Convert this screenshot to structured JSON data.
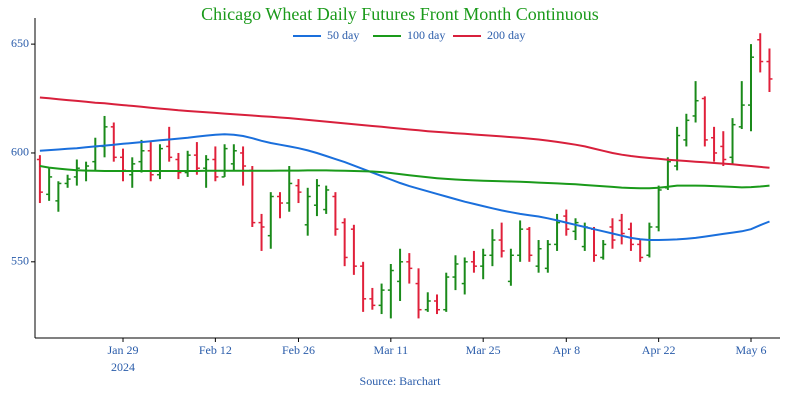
{
  "chart_data": {
    "type": "ohlc",
    "title": "Chicago Wheat Daily Futures Front Month Continuous",
    "source": "Source: Barchart",
    "categories": [
      null,
      null,
      null,
      null,
      null,
      null,
      null,
      null,
      null,
      "Jan 29",
      null,
      null,
      null,
      null,
      null,
      null,
      null,
      null,
      null,
      "Feb 12",
      null,
      null,
      null,
      null,
      null,
      null,
      null,
      null,
      "Feb 26",
      null,
      null,
      null,
      null,
      null,
      null,
      null,
      null,
      null,
      "Mar 11",
      null,
      null,
      null,
      null,
      null,
      null,
      null,
      null,
      null,
      "Mar 25",
      null,
      null,
      null,
      null,
      null,
      null,
      null,
      null,
      "Apr 8",
      null,
      null,
      null,
      null,
      null,
      null,
      null,
      null,
      null,
      "Apr 22",
      null,
      null,
      null,
      null,
      null,
      null,
      null,
      null,
      null,
      "May 6",
      null,
      null
    ],
    "year_label": "2024",
    "open": [
      597,
      581,
      578,
      586,
      589,
      592,
      596,
      603,
      612,
      598,
      590,
      596,
      601,
      590,
      603,
      597,
      591,
      599,
      593,
      597,
      589,
      595,
      600,
      592,
      568,
      562,
      580,
      577,
      585,
      567,
      576,
      574,
      580,
      568,
      565,
      548,
      533,
      530,
      537,
      541,
      550,
      540,
      528,
      532,
      528,
      543,
      540,
      550,
      548,
      553,
      560,
      541,
      553,
      565,
      548,
      547,
      558,
      571,
      564,
      557,
      565,
      552,
      566,
      569,
      565,
      558,
      553,
      566,
      584,
      594,
      606,
      617,
      625,
      607,
      603,
      598,
      612,
      622,
      652,
      642
    ],
    "high": [
      599,
      593,
      587,
      590,
      597,
      596,
      607,
      617,
      614,
      602,
      598,
      606,
      605,
      604,
      612,
      600,
      601,
      605,
      599,
      603,
      604,
      604,
      603,
      594,
      572,
      582,
      582,
      594,
      588,
      584,
      588,
      585,
      582,
      570,
      567,
      550,
      538,
      540,
      549,
      556,
      554,
      547,
      536,
      535,
      545,
      553,
      552,
      555,
      556,
      565,
      568,
      556,
      569,
      566,
      560,
      560,
      572,
      574,
      570,
      568,
      566,
      560,
      570,
      572,
      568,
      560,
      568,
      585,
      598,
      612,
      618,
      633,
      626,
      612,
      610,
      616,
      633,
      650,
      655,
      648
    ],
    "low": [
      577,
      578,
      573,
      584,
      585,
      587,
      592,
      598,
      596,
      587,
      584,
      591,
      587,
      588,
      596,
      588,
      589,
      590,
      584,
      587,
      589,
      592,
      585,
      566,
      555,
      556,
      570,
      573,
      577,
      562,
      571,
      572,
      562,
      548,
      544,
      527,
      528,
      526,
      524,
      532,
      540,
      524,
      527,
      526,
      527,
      537,
      535,
      545,
      542,
      548,
      552,
      539,
      550,
      550,
      545,
      545,
      555,
      562,
      560,
      555,
      550,
      551,
      556,
      558,
      555,
      550,
      552,
      564,
      583,
      592,
      603,
      614,
      603,
      596,
      594,
      595,
      611,
      610,
      637,
      628
    ],
    "close": [
      582,
      589,
      586,
      588,
      593,
      594,
      603,
      612,
      598,
      592,
      595,
      601,
      590,
      602,
      598,
      591,
      599,
      593,
      597,
      589,
      602,
      601,
      594,
      568,
      566,
      580,
      577,
      586,
      582,
      580,
      585,
      583,
      565,
      552,
      548,
      533,
      530,
      537,
      546,
      550,
      547,
      528,
      532,
      528,
      543,
      549,
      550,
      548,
      553,
      560,
      555,
      553,
      565,
      553,
      556,
      558,
      568,
      565,
      568,
      566,
      553,
      558,
      560,
      563,
      558,
      552,
      566,
      583,
      596,
      608,
      615,
      624,
      606,
      600,
      597,
      613,
      622,
      644,
      642,
      634
    ],
    "up_color": "#1a8a1a",
    "down_color": "#e0203a",
    "series": [
      {
        "name": "50 day",
        "color": "#1a6fdc",
        "values": [
          601.0,
          601.3,
          601.6,
          601.9,
          602.2,
          602.6,
          603.0,
          603.4,
          603.8,
          604.2,
          604.6,
          605.0,
          605.4,
          605.8,
          606.2,
          606.6,
          607.0,
          607.5,
          608.0,
          608.4,
          608.6,
          608.4,
          607.8,
          606.8,
          605.6,
          604.6,
          603.8,
          603.0,
          602.2,
          601.2,
          600.0,
          598.6,
          597.2,
          595.8,
          594.2,
          592.6,
          591.0,
          589.4,
          587.8,
          586.2,
          584.8,
          583.6,
          582.4,
          581.2,
          580.0,
          578.8,
          577.6,
          576.6,
          575.6,
          574.6,
          573.6,
          572.8,
          572.0,
          571.4,
          570.8,
          570.0,
          569.0,
          568.0,
          567.0,
          566.0,
          565.0,
          564.0,
          563.0,
          562.0,
          561.0,
          560.4,
          560.0,
          560.0,
          560.1,
          560.3,
          560.6,
          561.0,
          561.6,
          562.2,
          562.8,
          563.4,
          564.0,
          565.0,
          566.8,
          568.5
        ]
      },
      {
        "name": "100 day",
        "color": "#1a9a1a",
        "values": [
          594.0,
          593.3,
          592.8,
          592.4,
          592.1,
          591.9,
          591.8,
          591.7,
          591.7,
          591.7,
          591.7,
          591.7,
          591.7,
          591.7,
          591.7,
          591.7,
          591.7,
          591.7,
          591.8,
          591.8,
          591.8,
          591.8,
          591.8,
          591.8,
          591.8,
          591.8,
          591.9,
          591.9,
          591.9,
          592.0,
          592.0,
          592.0,
          591.9,
          591.8,
          591.7,
          591.6,
          591.5,
          591.2,
          590.8,
          590.3,
          589.8,
          589.3,
          588.8,
          588.4,
          588.1,
          587.8,
          587.6,
          587.4,
          587.2,
          587.1,
          587.0,
          586.9,
          586.8,
          586.6,
          586.4,
          586.2,
          586.0,
          585.8,
          585.6,
          585.3,
          585.0,
          584.7,
          584.4,
          584.1,
          583.9,
          583.8,
          583.8,
          584.0,
          584.5,
          585.0,
          585.0,
          585.0,
          584.9,
          584.8,
          584.6,
          584.4,
          584.2,
          584.3,
          584.6,
          585.0
        ]
      },
      {
        "name": "200 day",
        "color": "#d8203c",
        "values": [
          625.5,
          625.1,
          624.7,
          624.3,
          623.9,
          623.5,
          623.1,
          622.8,
          622.4,
          622.0,
          621.6,
          621.2,
          620.8,
          620.4,
          620.0,
          619.6,
          619.3,
          619.0,
          618.7,
          618.4,
          618.1,
          617.8,
          617.5,
          617.2,
          616.9,
          616.6,
          616.3,
          616.0,
          615.6,
          615.2,
          614.8,
          614.4,
          614.0,
          613.6,
          613.2,
          612.8,
          612.4,
          612.0,
          611.6,
          611.2,
          610.8,
          610.4,
          610.0,
          609.7,
          609.4,
          609.1,
          608.8,
          608.5,
          608.2,
          607.9,
          607.6,
          607.3,
          607.0,
          606.6,
          606.2,
          605.7,
          605.1,
          604.5,
          603.8,
          603.0,
          602.0,
          601.0,
          600.0,
          599.2,
          598.6,
          598.1,
          597.7,
          597.3,
          596.9,
          596.6,
          596.3,
          596.0,
          595.7,
          595.4,
          595.1,
          594.8,
          594.4,
          594.0,
          593.6,
          593.2
        ]
      }
    ],
    "ylim": [
      515,
      662
    ],
    "yticks": [
      550,
      600,
      650
    ]
  }
}
